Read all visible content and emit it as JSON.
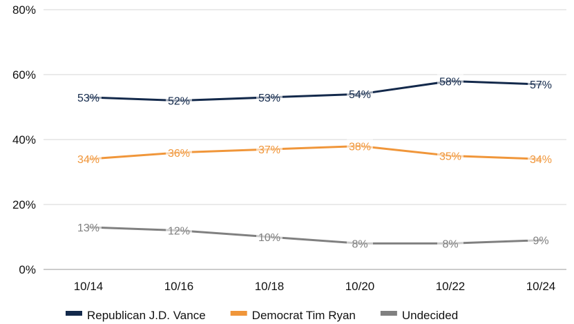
{
  "chart_data": {
    "type": "line",
    "categories": [
      "10/14",
      "10/16",
      "10/18",
      "10/20",
      "10/22",
      "10/24"
    ],
    "ylim": [
      0,
      80
    ],
    "yticks": [
      0,
      20,
      40,
      60,
      80
    ],
    "ytick_labels": [
      "0%",
      "20%",
      "40%",
      "60%",
      "80%"
    ],
    "grid": true,
    "legend_position": "bottom",
    "series": [
      {
        "name": "Republican J.D. Vance",
        "color": "#13294b",
        "values": [
          53,
          52,
          53,
          54,
          58,
          57
        ],
        "labels": [
          "53%",
          "52%",
          "53%",
          "54%",
          "58%",
          "57%"
        ]
      },
      {
        "name": "Democrat Tim Ryan",
        "color": "#f0963a",
        "values": [
          34,
          36,
          37,
          38,
          35,
          34
        ],
        "labels": [
          "34%",
          "36%",
          "37%",
          "38%",
          "35%",
          "34%"
        ]
      },
      {
        "name": "Undecided",
        "color": "#808080",
        "values": [
          13,
          12,
          10,
          8,
          8,
          9
        ],
        "labels": [
          "13%",
          "12%",
          "10%",
          "8%",
          "8%",
          "9%"
        ]
      }
    ]
  }
}
